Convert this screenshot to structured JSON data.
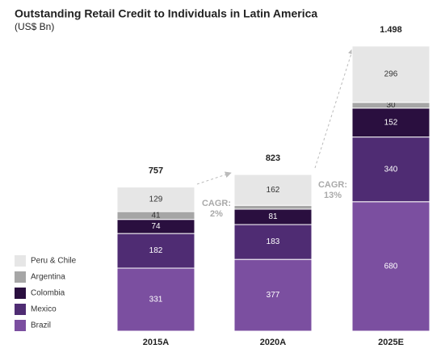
{
  "chart_data": {
    "type": "stacked-bar",
    "title": "Outstanding Retail Credit to Individuals in Latin America",
    "subtitle": "(US$ Bn)",
    "categories": [
      "2015A",
      "2020A",
      "2025E"
    ],
    "series": [
      {
        "name": "Brazil",
        "color": "#7b4fa0",
        "values": [
          331,
          377,
          680
        ]
      },
      {
        "name": "Mexico",
        "color": "#4f2c73",
        "values": [
          182,
          183,
          340
        ]
      },
      {
        "name": "Colombia",
        "color": "#2a0f3f",
        "values": [
          74,
          81,
          152
        ]
      },
      {
        "name": "Argentina",
        "color": "#a6a6a6",
        "values": [
          41,
          20,
          30
        ],
        "value_labels": [
          "41",
          null,
          "30"
        ]
      },
      {
        "name": "Peru & Chile",
        "color": "#e6e6e6",
        "values": [
          129,
          162,
          296
        ]
      }
    ],
    "totals": {
      "values": [
        757,
        823,
        1498
      ],
      "value_labels": [
        "757",
        "823",
        "1.498"
      ]
    },
    "annotations": [
      [
        "CAGR:",
        "2%"
      ],
      [
        "CAGR:",
        "13%"
      ]
    ]
  }
}
